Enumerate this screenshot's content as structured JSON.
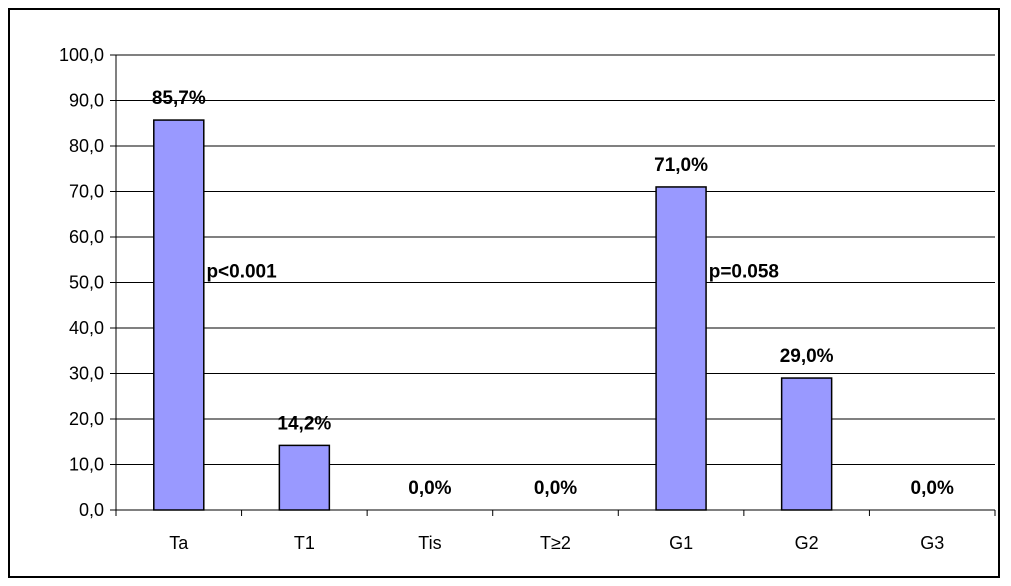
{
  "chart_data": {
    "type": "bar",
    "categories": [
      "Ta",
      "T1",
      "Tis",
      "T≥2",
      "G1",
      "G2",
      "G3"
    ],
    "values": [
      85.7,
      14.2,
      0.0,
      0.0,
      71.0,
      29.0,
      0.0
    ],
    "data_labels": [
      "85,7%",
      "14,2%",
      "0,0%",
      "0,0%",
      "71,0%",
      "29,0%",
      "0,0%"
    ],
    "y_ticks": [
      "0,0",
      "10,0",
      "20,0",
      "30,0",
      "40,0",
      "50,0",
      "60,0",
      "70,0",
      "80,0",
      "90,0",
      "100,0"
    ],
    "ylim": [
      0,
      100
    ],
    "grid": true,
    "legend": "none",
    "annotations": [
      {
        "text": "p<0.001",
        "x_between": [
          0,
          1
        ],
        "y": 50
      },
      {
        "text": "p=0.058",
        "x_between": [
          4,
          5
        ],
        "y": 50
      }
    ],
    "bar_color": "#9999ff",
    "bar_border": "#000000"
  }
}
